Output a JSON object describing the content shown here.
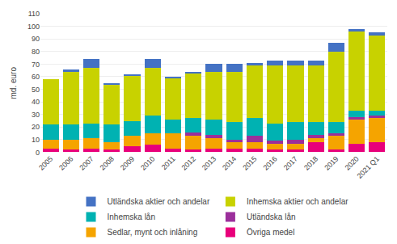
{
  "chart_data": {
    "type": "bar",
    "stacked": true,
    "categories": [
      "2005",
      "2006",
      "2007",
      "2008",
      "2009",
      "2010",
      "2011",
      "2012",
      "2013",
      "2014",
      "2015",
      "2016",
      "2017",
      "2018",
      "2019",
      "2020",
      "2021 Q1"
    ],
    "series": [
      {
        "name": "Övriga medel",
        "color": "#e8007a",
        "values": [
          3,
          2,
          3,
          2,
          5,
          6,
          3,
          2,
          3,
          3,
          3,
          2,
          2,
          8,
          2,
          7,
          8
        ]
      },
      {
        "name": "Sedlar, mynt och inlåning",
        "color": "#f5a400",
        "values": [
          7,
          8,
          8,
          6,
          8,
          9,
          12,
          11,
          8,
          5,
          5,
          5,
          5,
          3,
          11,
          19,
          19
        ]
      },
      {
        "name": "Utländska lån",
        "color": "#9b2f9b",
        "values": [
          0,
          0,
          0,
          0,
          0,
          0,
          0,
          3,
          3,
          2,
          5,
          2,
          3,
          3,
          2,
          2,
          2
        ]
      },
      {
        "name": "Inhemska lån",
        "color": "#00b2b2",
        "values": [
          12,
          12,
          12,
          14,
          12,
          14,
          11,
          11,
          12,
          14,
          14,
          14,
          14,
          10,
          9,
          5,
          4
        ]
      },
      {
        "name": "Inhemska aktier och andelar",
        "color": "#c8d200",
        "values": [
          36,
          42,
          44,
          32,
          36,
          38,
          33,
          36,
          38,
          40,
          42,
          46,
          45,
          45,
          56,
          63,
          60
        ]
      },
      {
        "name": "Utländska aktier och andelar",
        "color": "#4472c4",
        "values": [
          0,
          2,
          7,
          1,
          1,
          7,
          1,
          1,
          6,
          6,
          2,
          4,
          4,
          4,
          7,
          2,
          2
        ]
      }
    ],
    "ylabel": "md. euro",
    "ylim": [
      0,
      110
    ],
    "yticks": [
      0,
      10,
      20,
      30,
      40,
      50,
      60,
      70,
      80,
      90,
      100,
      110
    ],
    "grid": true,
    "legend": "bottom"
  }
}
